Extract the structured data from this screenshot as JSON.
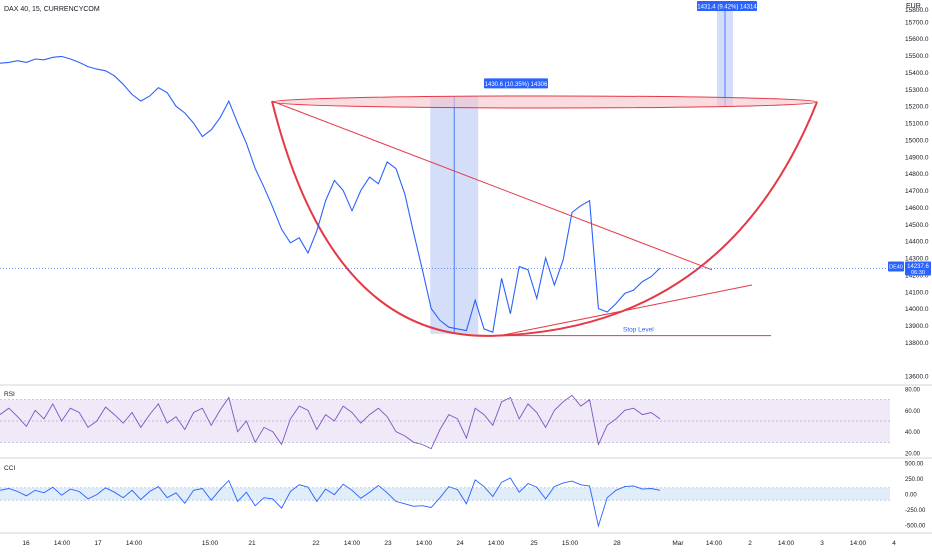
{
  "header": {
    "symbol": "DAX 40",
    "interval": "15",
    "source": "CURRENCYCOM",
    "currency": "EUR"
  },
  "price_tag": {
    "symbol": "DE40",
    "price": "14237.6",
    "countdown": "06:30"
  },
  "colors": {
    "price_line": "#2962ff",
    "pattern": "#e53946",
    "measure_fill": "#c7d3f7",
    "rsi_line": "#7e57c2",
    "rsi_band": "#efe9f8",
    "cci_line": "#2962ff",
    "cci_band": "#e1edf9"
  },
  "chart_data": [
    {
      "type": "line",
      "panel": "price",
      "y_ticks": [
        "15700.0",
        "15600.0",
        "15500.0",
        "15400.0",
        "15300.0",
        "15200.0",
        "15100.0",
        "15000.0",
        "14900.0",
        "14800.0",
        "14700.0",
        "14600.0",
        "14500.0",
        "14400.0",
        "14300.0",
        "14200.0",
        "14100.0",
        "14000.0",
        "13900.0",
        "13800.0",
        "13600.0"
      ],
      "ylim": [
        13565,
        15800
      ],
      "y_tick_values": [
        15700,
        15600,
        15500,
        15400,
        15300,
        15200,
        15100,
        15000,
        14900,
        14800,
        14700,
        14600,
        14500,
        14400,
        14300,
        14200,
        14100,
        14000,
        13900,
        13800,
        13600
      ],
      "top_partial_tick": "15800.0",
      "x_ticks": [
        "16",
        "14:00",
        "17",
        "14:00",
        "15:00",
        "21",
        "22",
        "14:00",
        "23",
        "14:00",
        "24",
        "14:00",
        "25",
        "15:00",
        "28",
        "Mar",
        "14:00",
        "2",
        "14:00",
        "3",
        "14:00",
        "4"
      ],
      "series_points": [
        [
          0,
          15455
        ],
        [
          1,
          15460
        ],
        [
          2,
          15470
        ],
        [
          3,
          15460
        ],
        [
          4,
          15480
        ],
        [
          5,
          15475
        ],
        [
          6,
          15490
        ],
        [
          7,
          15495
        ],
        [
          8,
          15480
        ],
        [
          9,
          15460
        ],
        [
          10,
          15435
        ],
        [
          11,
          15420
        ],
        [
          12,
          15410
        ],
        [
          13,
          15380
        ],
        [
          14,
          15330
        ],
        [
          15,
          15270
        ],
        [
          16,
          15230
        ],
        [
          17,
          15260
        ],
        [
          18,
          15310
        ],
        [
          19,
          15280
        ],
        [
          20,
          15200
        ],
        [
          21,
          15160
        ],
        [
          22,
          15100
        ],
        [
          23,
          15020
        ],
        [
          24,
          15060
        ],
        [
          25,
          15130
        ],
        [
          26,
          15230
        ],
        [
          27,
          15100
        ],
        [
          28,
          14980
        ],
        [
          29,
          14830
        ],
        [
          30,
          14720
        ],
        [
          31,
          14600
        ],
        [
          32,
          14470
        ],
        [
          33,
          14390
        ],
        [
          34,
          14420
        ],
        [
          35,
          14330
        ],
        [
          36,
          14460
        ],
        [
          37,
          14640
        ],
        [
          38,
          14760
        ],
        [
          39,
          14700
        ],
        [
          40,
          14580
        ],
        [
          41,
          14700
        ],
        [
          42,
          14780
        ],
        [
          43,
          14740
        ],
        [
          44,
          14870
        ],
        [
          45,
          14830
        ],
        [
          46,
          14680
        ],
        [
          47,
          14450
        ],
        [
          48,
          14230
        ],
        [
          49,
          14000
        ],
        [
          50,
          13930
        ],
        [
          51,
          13890
        ],
        [
          52,
          13880
        ],
        [
          53,
          13870
        ],
        [
          54,
          14050
        ],
        [
          55,
          13880
        ],
        [
          56,
          13860
        ],
        [
          57,
          14180
        ],
        [
          58,
          13970
        ],
        [
          59,
          14250
        ],
        [
          60,
          14230
        ],
        [
          61,
          14060
        ],
        [
          62,
          14300
        ],
        [
          63,
          14140
        ],
        [
          64,
          14290
        ],
        [
          65,
          14570
        ],
        [
          66,
          14610
        ],
        [
          67,
          14640
        ],
        [
          68,
          14000
        ],
        [
          69,
          13980
        ],
        [
          70,
          14030
        ],
        [
          71,
          14090
        ],
        [
          72,
          14110
        ],
        [
          73,
          14160
        ],
        [
          74,
          14190
        ],
        [
          75,
          14240
        ]
      ],
      "annotations": [
        {
          "text": "1430.6 (10.35%) 14306",
          "kind": "measure"
        },
        {
          "text": "1431.4 (9.42%) 14314",
          "kind": "measure"
        },
        {
          "text": "Stop Level",
          "kind": "label"
        }
      ],
      "bottom_level": 13840,
      "rim_level": 15225
    },
    {
      "type": "line",
      "panel": "rsi",
      "title": "RSI",
      "ylim": [
        20,
        80
      ],
      "y_ticks": [
        "80.00",
        "60.00",
        "40.00",
        "20.00"
      ],
      "y_tick_values": [
        80,
        60,
        40,
        20
      ],
      "band": [
        30,
        70
      ],
      "values": [
        56,
        62,
        54,
        45,
        60,
        52,
        66,
        50,
        62,
        58,
        44,
        50,
        63,
        56,
        48,
        58,
        44,
        56,
        66,
        48,
        54,
        42,
        58,
        62,
        46,
        60,
        72,
        40,
        50,
        30,
        44,
        40,
        28,
        52,
        64,
        60,
        42,
        56,
        50,
        64,
        58,
        48,
        56,
        62,
        54,
        40,
        36,
        30,
        28,
        24,
        42,
        56,
        52,
        34,
        62,
        56,
        46,
        68,
        72,
        52,
        66,
        58,
        44,
        60,
        68,
        74,
        64,
        70,
        28,
        46,
        52,
        60,
        62,
        56,
        58,
        52
      ]
    },
    {
      "type": "line",
      "panel": "cci",
      "title": "CCI",
      "ylim": [
        -520,
        520
      ],
      "y_ticks": [
        "500.00",
        "250.00",
        "0.00",
        "-250.00",
        "-500.00"
      ],
      "y_tick_values": [
        500,
        250,
        0,
        -250,
        -500
      ],
      "band": [
        -100,
        100
      ],
      "values": [
        60,
        90,
        40,
        -30,
        60,
        20,
        110,
        -20,
        80,
        40,
        -80,
        -10,
        100,
        30,
        -60,
        60,
        -90,
        40,
        120,
        -60,
        20,
        -150,
        60,
        90,
        -100,
        70,
        220,
        -120,
        30,
        -190,
        -60,
        -80,
        -230,
        40,
        150,
        110,
        -120,
        80,
        -10,
        160,
        60,
        -70,
        30,
        140,
        20,
        -120,
        -160,
        -200,
        -190,
        -220,
        -60,
        120,
        70,
        -160,
        230,
        120,
        -40,
        190,
        260,
        30,
        170,
        110,
        -80,
        120,
        180,
        210,
        150,
        130,
        -520,
        -60,
        60,
        120,
        130,
        80,
        90,
        60
      ]
    }
  ]
}
